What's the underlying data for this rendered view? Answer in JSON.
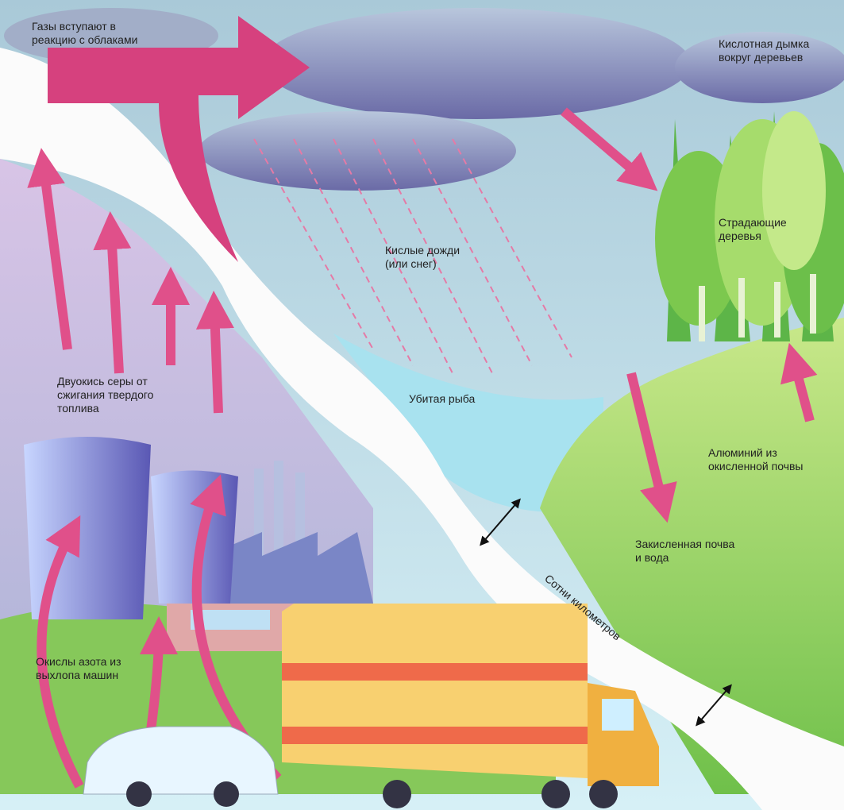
{
  "labels": [
    {
      "lines": [
        "Газы вступают в",
        "реакцию с облаками"
      ]
    },
    {
      "lines": [
        "Кислотная дымка",
        "вокруг деревьев"
      ]
    },
    {
      "lines": [
        "Страдающие",
        "деревья"
      ]
    },
    {
      "lines": [
        "Кислые дожди",
        "(или снег)"
      ]
    },
    {
      "lines": [
        "Двуокись серы от",
        "сжигания твердого",
        "топлива"
      ]
    },
    {
      "lines": [
        "Убитая рыба"
      ]
    },
    {
      "lines": [
        "Алюминий из",
        "окисленной почвы"
      ]
    },
    {
      "lines": [
        "Закисленная почва",
        "и вода"
      ]
    },
    {
      "lines": [
        "Сотни километров"
      ]
    },
    {
      "lines": [
        "Окислы азота из",
        "выхлопа машин"
      ]
    }
  ]
}
